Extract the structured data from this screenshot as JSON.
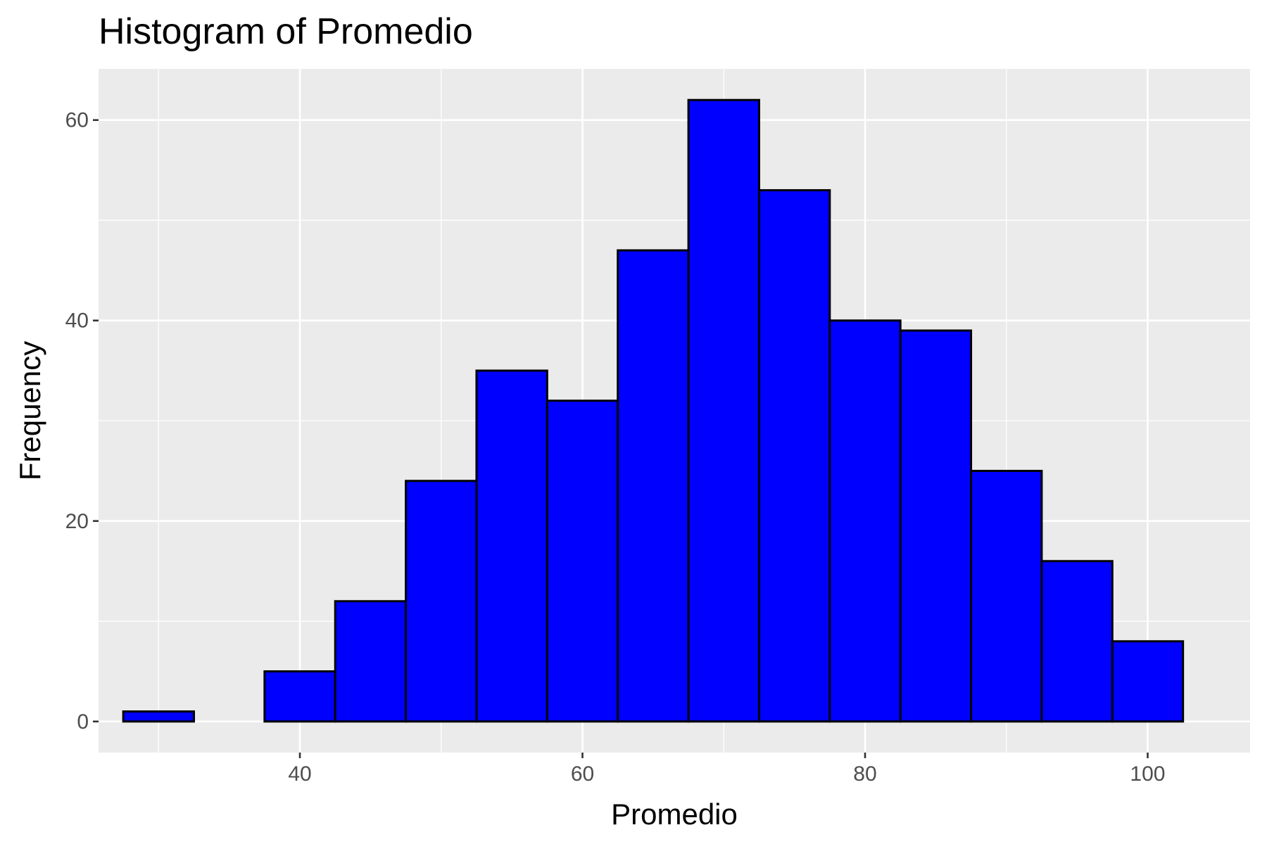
{
  "chart_data": {
    "type": "bar",
    "title": "Histogram of Promedio",
    "xlabel": "Promedio",
    "ylabel": "Frequency",
    "xlim": [
      25.75,
      107.25
    ],
    "ylim": [
      -3.1,
      65.1
    ],
    "x_ticks": [
      40,
      60,
      80,
      100
    ],
    "x_minor_ticks": [
      30,
      50,
      70,
      90
    ],
    "y_ticks": [
      0,
      20,
      40,
      60
    ],
    "y_minor_ticks": [
      10,
      30,
      50
    ],
    "grid": true,
    "legend": "none",
    "bin_width": 5,
    "bins": [
      {
        "x": 30,
        "count": 1
      },
      {
        "x": 35,
        "count": 0
      },
      {
        "x": 40,
        "count": 5
      },
      {
        "x": 45,
        "count": 12
      },
      {
        "x": 50,
        "count": 24
      },
      {
        "x": 55,
        "count": 35
      },
      {
        "x": 60,
        "count": 32
      },
      {
        "x": 65,
        "count": 47
      },
      {
        "x": 70,
        "count": 62
      },
      {
        "x": 75,
        "count": 53
      },
      {
        "x": 80,
        "count": 40
      },
      {
        "x": 85,
        "count": 39
      },
      {
        "x": 90,
        "count": 25
      },
      {
        "x": 95,
        "count": 16
      },
      {
        "x": 100,
        "count": 8
      }
    ],
    "colors": {
      "bar_fill": "#0000ff",
      "bar_outline": "#000000",
      "panel_background": "#ebebeb"
    }
  }
}
